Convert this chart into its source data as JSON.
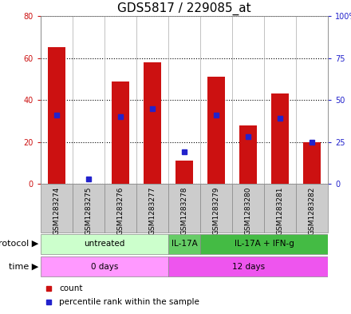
{
  "title": "GDS5817 / 229085_at",
  "samples": [
    "GSM1283274",
    "GSM1283275",
    "GSM1283276",
    "GSM1283277",
    "GSM1283278",
    "GSM1283279",
    "GSM1283280",
    "GSM1283281",
    "GSM1283282"
  ],
  "counts": [
    65,
    0,
    49,
    58,
    11,
    51,
    28,
    43,
    20
  ],
  "percentile_ranks": [
    41,
    3,
    40,
    45,
    19,
    41,
    28,
    39,
    25
  ],
  "ylim_left": [
    0,
    80
  ],
  "ylim_right": [
    0,
    100
  ],
  "yticks_left": [
    0,
    20,
    40,
    60,
    80
  ],
  "yticks_right": [
    0,
    25,
    50,
    75,
    100
  ],
  "yticklabels_right": [
    "0",
    "25",
    "50",
    "75",
    "100%"
  ],
  "bar_color": "#cc1111",
  "dot_color": "#2222cc",
  "protocol_groups": [
    {
      "label": "untreated",
      "start": 0,
      "end": 3,
      "color": "#ccffcc"
    },
    {
      "label": "IL-17A",
      "start": 4,
      "end": 4,
      "color": "#66cc66"
    },
    {
      "label": "IL-17A + IFN-g",
      "start": 5,
      "end": 8,
      "color": "#44bb44"
    }
  ],
  "time_groups": [
    {
      "label": "0 days",
      "start": 0,
      "end": 3,
      "color": "#ff99ff"
    },
    {
      "label": "12 days",
      "start": 4,
      "end": 8,
      "color": "#ee55ee"
    }
  ],
  "protocol_label": "protocol",
  "time_label": "time",
  "legend_count_label": "count",
  "legend_pct_label": "percentile rank within the sample",
  "plot_bg_color": "#ffffff",
  "grid_color": "#000000",
  "title_fontsize": 11,
  "tick_fontsize": 7,
  "label_fontsize": 8,
  "sample_box_color": "#cccccc",
  "sample_box_edge": "#888888"
}
